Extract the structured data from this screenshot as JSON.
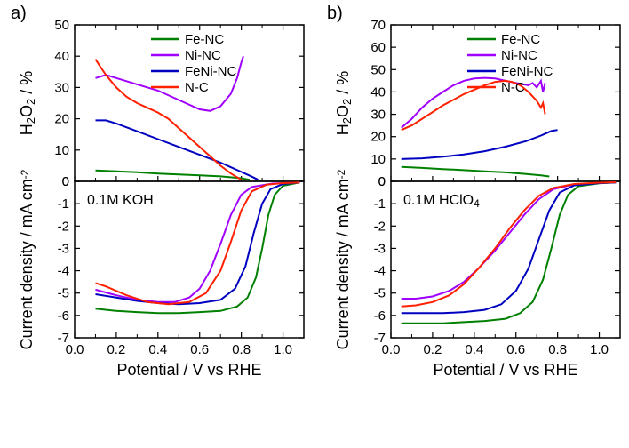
{
  "panels": {
    "a": {
      "label": "a)",
      "electrolyte": "0.1M KOH"
    },
    "b": {
      "label": "b)",
      "electrolyte": "0.1M HClO4"
    }
  },
  "legend": {
    "items": [
      {
        "label": "Fe-NC",
        "color": "#008000"
      },
      {
        "label": "Ni-NC",
        "color": "#a000ff"
      },
      {
        "label": "FeNi-NC",
        "color": "#0000c0"
      },
      {
        "label": "N-C",
        "color": "#ff2000"
      }
    ]
  },
  "axes": {
    "x": {
      "label": "Potential / V vs RHE",
      "min": 0.0,
      "max": 1.1,
      "ticks": [
        0.0,
        0.2,
        0.4,
        0.6,
        0.8,
        1.0
      ]
    },
    "a_top": {
      "label": "H2O2 / %",
      "min": 0,
      "max": 50,
      "ticks": [
        0,
        10,
        20,
        30,
        40,
        50
      ]
    },
    "b_top": {
      "label": "H2O2 / %",
      "min": 0,
      "max": 70,
      "ticks": [
        0,
        10,
        20,
        30,
        40,
        50,
        60,
        70
      ]
    },
    "a_bottom": {
      "label": "Current density / mA cm-2",
      "min": -7,
      "max": 0,
      "ticks": [
        -7,
        -6,
        -5,
        -4,
        -3,
        -2,
        -1,
        0
      ]
    },
    "b_bottom": {
      "label": "Current density / mA cm-2",
      "min": -7,
      "max": 0,
      "ticks": [
        -7,
        -6,
        -5,
        -4,
        -3,
        -2,
        -1,
        0
      ]
    }
  },
  "style": {
    "tick_fontsize": 15,
    "label_fontsize": 18,
    "panel_label_fontsize": 20,
    "line_width": 2,
    "axis_color": "#000000",
    "background": "#ffffff"
  },
  "series": {
    "a_top": {
      "Fe-NC": [
        [
          0.1,
          3.5
        ],
        [
          0.2,
          3.2
        ],
        [
          0.3,
          2.9
        ],
        [
          0.4,
          2.5
        ],
        [
          0.5,
          2.2
        ],
        [
          0.6,
          1.9
        ],
        [
          0.7,
          1.6
        ],
        [
          0.8,
          1.0
        ],
        [
          0.84,
          0.5
        ]
      ],
      "Ni-NC": [
        [
          0.1,
          33
        ],
        [
          0.15,
          34
        ],
        [
          0.2,
          33
        ],
        [
          0.3,
          31
        ],
        [
          0.4,
          29
        ],
        [
          0.5,
          26
        ],
        [
          0.6,
          23
        ],
        [
          0.65,
          22.5
        ],
        [
          0.7,
          24
        ],
        [
          0.75,
          28
        ],
        [
          0.78,
          33
        ],
        [
          0.8,
          38
        ],
        [
          0.81,
          40
        ]
      ],
      "FeNi-NC": [
        [
          0.1,
          19.5
        ],
        [
          0.15,
          19.5
        ],
        [
          0.2,
          18.5
        ],
        [
          0.3,
          16
        ],
        [
          0.4,
          13.5
        ],
        [
          0.5,
          11
        ],
        [
          0.6,
          8.5
        ],
        [
          0.7,
          6
        ],
        [
          0.8,
          3
        ],
        [
          0.85,
          1.5
        ],
        [
          0.88,
          0.5
        ]
      ],
      "N-C": [
        [
          0.1,
          39
        ],
        [
          0.12,
          37
        ],
        [
          0.15,
          34
        ],
        [
          0.2,
          30
        ],
        [
          0.25,
          27
        ],
        [
          0.3,
          25
        ],
        [
          0.35,
          23.5
        ],
        [
          0.4,
          22
        ],
        [
          0.45,
          20
        ],
        [
          0.5,
          17
        ],
        [
          0.55,
          14
        ],
        [
          0.6,
          11
        ],
        [
          0.65,
          8
        ],
        [
          0.7,
          5
        ],
        [
          0.75,
          2.5
        ],
        [
          0.8,
          0.5
        ]
      ]
    },
    "a_bottom": {
      "Fe-NC": [
        [
          0.1,
          -5.7
        ],
        [
          0.2,
          -5.8
        ],
        [
          0.3,
          -5.85
        ],
        [
          0.4,
          -5.9
        ],
        [
          0.5,
          -5.9
        ],
        [
          0.6,
          -5.85
        ],
        [
          0.7,
          -5.8
        ],
        [
          0.78,
          -5.6
        ],
        [
          0.83,
          -5.2
        ],
        [
          0.87,
          -4.3
        ],
        [
          0.9,
          -3.0
        ],
        [
          0.93,
          -1.5
        ],
        [
          0.96,
          -0.6
        ],
        [
          1.0,
          -0.2
        ],
        [
          1.08,
          -0.05
        ]
      ],
      "Ni-NC": [
        [
          0.1,
          -4.85
        ],
        [
          0.2,
          -5.1
        ],
        [
          0.3,
          -5.3
        ],
        [
          0.4,
          -5.4
        ],
        [
          0.48,
          -5.4
        ],
        [
          0.55,
          -5.2
        ],
        [
          0.6,
          -4.8
        ],
        [
          0.65,
          -4.0
        ],
        [
          0.7,
          -2.8
        ],
        [
          0.75,
          -1.5
        ],
        [
          0.8,
          -0.6
        ],
        [
          0.85,
          -0.25
        ],
        [
          0.95,
          -0.1
        ],
        [
          1.08,
          -0.05
        ]
      ],
      "FeNi-NC": [
        [
          0.1,
          -5.05
        ],
        [
          0.2,
          -5.2
        ],
        [
          0.3,
          -5.35
        ],
        [
          0.4,
          -5.45
        ],
        [
          0.5,
          -5.5
        ],
        [
          0.6,
          -5.45
        ],
        [
          0.7,
          -5.3
        ],
        [
          0.77,
          -4.8
        ],
        [
          0.82,
          -3.8
        ],
        [
          0.86,
          -2.3
        ],
        [
          0.9,
          -1.0
        ],
        [
          0.94,
          -0.35
        ],
        [
          1.0,
          -0.12
        ],
        [
          1.08,
          -0.05
        ]
      ],
      "N-C": [
        [
          0.1,
          -4.55
        ],
        [
          0.15,
          -4.7
        ],
        [
          0.25,
          -5.1
        ],
        [
          0.35,
          -5.4
        ],
        [
          0.45,
          -5.5
        ],
        [
          0.55,
          -5.4
        ],
        [
          0.63,
          -5.0
        ],
        [
          0.7,
          -4.0
        ],
        [
          0.75,
          -2.7
        ],
        [
          0.8,
          -1.3
        ],
        [
          0.85,
          -0.45
        ],
        [
          0.92,
          -0.15
        ],
        [
          1.0,
          -0.08
        ],
        [
          1.08,
          -0.05
        ]
      ]
    },
    "b_top": {
      "Fe-NC": [
        [
          0.05,
          6.5
        ],
        [
          0.15,
          6.0
        ],
        [
          0.25,
          5.5
        ],
        [
          0.35,
          5.0
        ],
        [
          0.45,
          4.5
        ],
        [
          0.55,
          4.0
        ],
        [
          0.65,
          3.3
        ],
        [
          0.72,
          2.7
        ],
        [
          0.76,
          2.2
        ]
      ],
      "Ni-NC": [
        [
          0.05,
          24
        ],
        [
          0.1,
          28
        ],
        [
          0.15,
          33
        ],
        [
          0.2,
          37
        ],
        [
          0.25,
          40
        ],
        [
          0.3,
          43
        ],
        [
          0.35,
          45
        ],
        [
          0.4,
          46
        ],
        [
          0.45,
          46.3
        ],
        [
          0.5,
          46
        ],
        [
          0.55,
          45
        ],
        [
          0.6,
          44
        ],
        [
          0.63,
          43.5
        ],
        [
          0.66,
          43
        ],
        [
          0.68,
          44
        ],
        [
          0.7,
          42
        ],
        [
          0.72,
          45
        ],
        [
          0.73,
          40
        ],
        [
          0.74,
          44
        ]
      ],
      "FeNi-NC": [
        [
          0.05,
          10
        ],
        [
          0.15,
          10.3
        ],
        [
          0.25,
          11
        ],
        [
          0.35,
          12
        ],
        [
          0.45,
          13.5
        ],
        [
          0.55,
          15.5
        ],
        [
          0.65,
          18
        ],
        [
          0.72,
          20.5
        ],
        [
          0.77,
          22.5
        ],
        [
          0.8,
          23
        ]
      ],
      "N-C": [
        [
          0.05,
          23
        ],
        [
          0.1,
          25
        ],
        [
          0.15,
          28
        ],
        [
          0.2,
          31
        ],
        [
          0.25,
          34
        ],
        [
          0.3,
          36.5
        ],
        [
          0.35,
          39
        ],
        [
          0.4,
          41
        ],
        [
          0.45,
          43
        ],
        [
          0.5,
          44.5
        ],
        [
          0.55,
          45
        ],
        [
          0.58,
          44.5
        ],
        [
          0.62,
          43
        ],
        [
          0.66,
          40
        ],
        [
          0.7,
          36
        ],
        [
          0.72,
          33
        ],
        [
          0.73,
          35
        ],
        [
          0.74,
          30
        ]
      ]
    },
    "b_bottom": {
      "Fe-NC": [
        [
          0.05,
          -6.35
        ],
        [
          0.15,
          -6.35
        ],
        [
          0.25,
          -6.35
        ],
        [
          0.35,
          -6.3
        ],
        [
          0.45,
          -6.25
        ],
        [
          0.55,
          -6.15
        ],
        [
          0.62,
          -5.9
        ],
        [
          0.68,
          -5.4
        ],
        [
          0.73,
          -4.4
        ],
        [
          0.77,
          -3.0
        ],
        [
          0.81,
          -1.5
        ],
        [
          0.85,
          -0.6
        ],
        [
          0.9,
          -0.22
        ],
        [
          1.0,
          -0.09
        ],
        [
          1.08,
          -0.05
        ]
      ],
      "Ni-NC": [
        [
          0.05,
          -5.25
        ],
        [
          0.12,
          -5.25
        ],
        [
          0.2,
          -5.15
        ],
        [
          0.28,
          -4.9
        ],
        [
          0.35,
          -4.5
        ],
        [
          0.42,
          -3.9
        ],
        [
          0.5,
          -3.1
        ],
        [
          0.57,
          -2.3
        ],
        [
          0.64,
          -1.5
        ],
        [
          0.71,
          -0.8
        ],
        [
          0.78,
          -0.35
        ],
        [
          0.88,
          -0.13
        ],
        [
          1.0,
          -0.07
        ],
        [
          1.08,
          -0.04
        ]
      ],
      "FeNi-NC": [
        [
          0.05,
          -5.9
        ],
        [
          0.15,
          -5.9
        ],
        [
          0.25,
          -5.9
        ],
        [
          0.35,
          -5.85
        ],
        [
          0.45,
          -5.75
        ],
        [
          0.53,
          -5.5
        ],
        [
          0.6,
          -4.9
        ],
        [
          0.66,
          -3.9
        ],
        [
          0.71,
          -2.6
        ],
        [
          0.76,
          -1.3
        ],
        [
          0.81,
          -0.5
        ],
        [
          0.88,
          -0.18
        ],
        [
          1.0,
          -0.08
        ],
        [
          1.08,
          -0.05
        ]
      ],
      "N-C": [
        [
          0.05,
          -5.6
        ],
        [
          0.12,
          -5.55
        ],
        [
          0.2,
          -5.4
        ],
        [
          0.28,
          -5.1
        ],
        [
          0.35,
          -4.6
        ],
        [
          0.42,
          -3.9
        ],
        [
          0.5,
          -3.0
        ],
        [
          0.57,
          -2.1
        ],
        [
          0.64,
          -1.3
        ],
        [
          0.71,
          -0.65
        ],
        [
          0.78,
          -0.3
        ],
        [
          0.88,
          -0.12
        ],
        [
          1.0,
          -0.06
        ],
        [
          1.08,
          -0.04
        ]
      ]
    }
  }
}
